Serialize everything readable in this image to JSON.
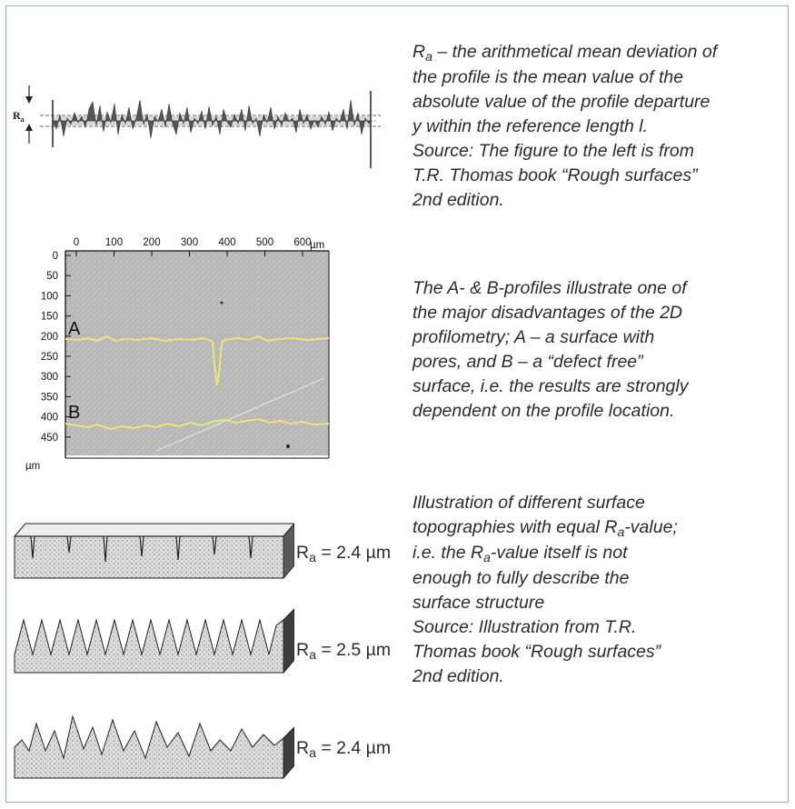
{
  "para1": {
    "line1_symbol": "R",
    "line1_sub": "a",
    "line1_rest": " – the arithmetical mean deviation of",
    "line2": "the profile is the mean value of the",
    "line3": "absolute value of the profile departure",
    "line4": "y within the reference length l.",
    "line5": "Source: The figure to the left is from",
    "line6": "T.R. Thomas book “Rough surfaces”",
    "line7": "2nd edition."
  },
  "para2": {
    "line1": "The A- & B-profiles illustrate one of",
    "line2": "the major disadvantages of the 2D",
    "line3": "profilometry;  A – a surface with",
    "line4": "pores, and B – a “defect free”",
    "line5": "surface, i.e. the results are strongly",
    "line6": "dependent on the profile location."
  },
  "para3": {
    "line1": "Illustration of different surface",
    "line2_pre": "topographies with equal R",
    "line2_sub": "a",
    "line2_post": "-value;",
    "line3_pre": "i.e. the R",
    "line3_sub": "a",
    "line3_post": "-value itself is not",
    "line4": "enough to fully describe the",
    "line5": "surface structure",
    "line6": "Source: Illustration from T.R.",
    "line7": "Thomas book “Rough surfaces”",
    "line8": "2nd edition."
  },
  "profile_figure": {
    "ra_symbol": "R",
    "ra_sub": "a"
  },
  "surface_map": {
    "x_ticks": [
      "0",
      "100",
      "200",
      "300",
      "400",
      "500",
      "600"
    ],
    "x_unit": "µm",
    "y_ticks": [
      "0",
      "50",
      "100",
      "150",
      "200",
      "250",
      "300",
      "350",
      "400",
      "450"
    ],
    "y_unit": "µm",
    "label_a": "A",
    "label_b": "B"
  },
  "blocks": [
    {
      "symbol": "R",
      "sub": "a",
      "value": " = 2.4 µm"
    },
    {
      "symbol": "R",
      "sub": "a",
      "value": " = 2.5 µm"
    },
    {
      "symbol": "R",
      "sub": "a",
      "value": " = 2.4 µm"
    }
  ],
  "colors": {
    "frame": "#8fb3c6",
    "text": "#2b2b2b",
    "profile_trace": "#f2e27a",
    "profile_fill": "#555555"
  }
}
